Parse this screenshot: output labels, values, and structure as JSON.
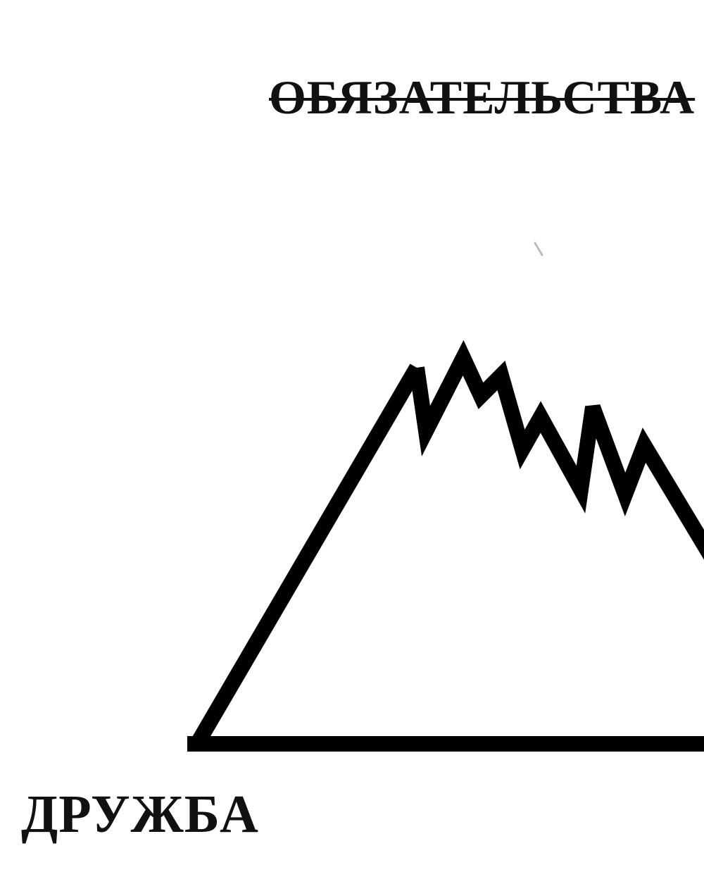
{
  "labels": {
    "top": "ОБЯЗАТЕЛЬСТВА",
    "bottom_left": "ДРУЖБА"
  },
  "colors": {
    "stroke": "#000000",
    "text": "#111111",
    "background": "#ffffff",
    "speck": "#bbbbbb"
  }
}
